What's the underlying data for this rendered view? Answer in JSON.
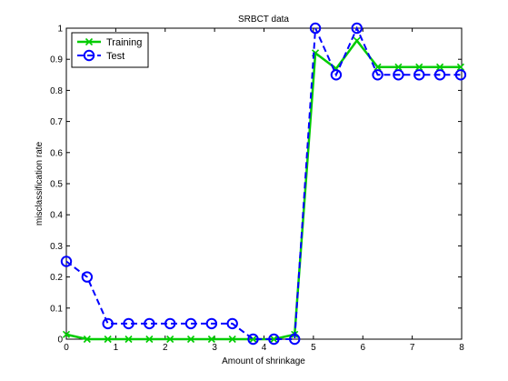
{
  "chart_data": {
    "type": "line",
    "title": "SRBCT data",
    "xlabel": "Amount of shrinkage",
    "ylabel": "misclassification rate",
    "xlim": [
      0,
      8
    ],
    "ylim": [
      0,
      1
    ],
    "x_ticks": [
      "0",
      "1",
      "2",
      "3",
      "4",
      "5",
      "6",
      "7",
      "8"
    ],
    "y_ticks": [
      "0",
      "0.1",
      "0.2",
      "0.3",
      "0.4",
      "0.5",
      "0.6",
      "0.7",
      "0.8",
      "0.9",
      "1"
    ],
    "grid": false,
    "legend_position": "top-left",
    "series": [
      {
        "name": "Training",
        "color": "#00cc00",
        "line_style": "solid",
        "marker": "x",
        "x": [
          0,
          0.42,
          0.84,
          1.26,
          1.68,
          2.1,
          2.52,
          2.94,
          3.36,
          3.78,
          4.2,
          4.62,
          5.04,
          5.46,
          5.88,
          6.3,
          6.72,
          7.14,
          7.56,
          7.98
        ],
        "y": [
          0.015,
          0.0,
          0.0,
          0.0,
          0.0,
          0.0,
          0.0,
          0.0,
          0.0,
          0.0,
          0.0,
          0.015,
          0.92,
          0.87,
          0.96,
          0.875,
          0.875,
          0.875,
          0.875,
          0.875
        ]
      },
      {
        "name": "Test",
        "color": "#0000ff",
        "line_style": "dashed",
        "marker": "o",
        "x": [
          0,
          0.42,
          0.84,
          1.26,
          1.68,
          2.1,
          2.52,
          2.94,
          3.36,
          3.78,
          4.2,
          4.62,
          5.04,
          5.46,
          5.88,
          6.3,
          6.72,
          7.14,
          7.56,
          7.98
        ],
        "y": [
          0.25,
          0.2,
          0.05,
          0.05,
          0.05,
          0.05,
          0.05,
          0.05,
          0.05,
          0.0,
          0.0,
          0.0,
          1.0,
          0.85,
          1.0,
          0.85,
          0.85,
          0.85,
          0.85,
          0.85
        ]
      }
    ]
  }
}
